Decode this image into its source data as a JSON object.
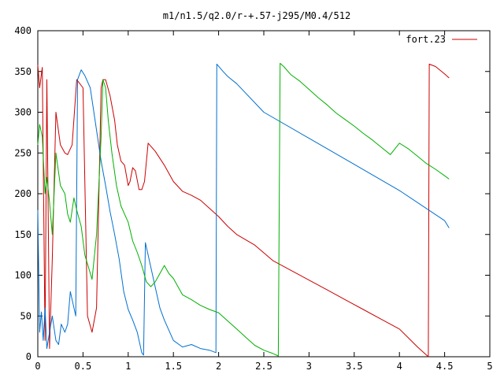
{
  "chart_data": {
    "type": "line",
    "title": "m1/n1.5/q2.0/r-+.57-j295/M0.4/512",
    "xlabel": "",
    "ylabel": "",
    "xlim": [
      0,
      5
    ],
    "ylim": [
      0,
      400
    ],
    "xticks": [
      {
        "value": 0,
        "label": "0"
      },
      {
        "value": 0.5,
        "label": "0.5"
      },
      {
        "value": 1,
        "label": "1"
      },
      {
        "value": 1.5,
        "label": "1.5"
      },
      {
        "value": 2,
        "label": "2"
      },
      {
        "value": 2.5,
        "label": "2.5"
      },
      {
        "value": 3,
        "label": "3"
      },
      {
        "value": 3.5,
        "label": "3.5"
      },
      {
        "value": 4,
        "label": "4"
      },
      {
        "value": 4.5,
        "label": "4.5"
      },
      {
        "value": 5,
        "label": "5"
      }
    ],
    "yticks": [
      {
        "value": 0,
        "label": "0"
      },
      {
        "value": 50,
        "label": "50"
      },
      {
        "value": 100,
        "label": "100"
      },
      {
        "value": 150,
        "label": "150"
      },
      {
        "value": 200,
        "label": "200"
      },
      {
        "value": 250,
        "label": "250"
      },
      {
        "value": 300,
        "label": "300"
      },
      {
        "value": 350,
        "label": "350"
      },
      {
        "value": 400,
        "label": "400"
      }
    ],
    "grid": false,
    "legend_position": "top-right",
    "legend_entries": [
      {
        "label": "fort.23",
        "color": "#cc0000"
      }
    ],
    "series": [
      {
        "name": "fort.23",
        "color": "#cc0000",
        "x": [
          0,
          0.02,
          0.05,
          0.08,
          0.1,
          0.13,
          0.16,
          0.2,
          0.25,
          0.3,
          0.33,
          0.38,
          0.43,
          0.5,
          0.55,
          0.6,
          0.65,
          0.7,
          0.72,
          0.75,
          0.8,
          0.85,
          0.88,
          0.92,
          0.96,
          1.0,
          1.02,
          1.05,
          1.08,
          1.12,
          1.15,
          1.18,
          1.22,
          1.3,
          1.4,
          1.5,
          1.6,
          1.7,
          1.8,
          1.9,
          2.0,
          2.1,
          2.2,
          2.4,
          2.6,
          2.8,
          3.0,
          3.2,
          3.4,
          3.6,
          3.8,
          4.0,
          4.2,
          4.32,
          4.33,
          4.4,
          4.5,
          4.55
        ],
        "y": [
          358,
          330,
          355,
          20,
          340,
          10,
          120,
          300,
          260,
          250,
          248,
          260,
          340,
          330,
          50,
          30,
          60,
          330,
          340,
          340,
          320,
          290,
          260,
          240,
          235,
          210,
          215,
          232,
          228,
          205,
          205,
          215,
          262,
          252,
          235,
          215,
          203,
          198,
          192,
          182,
          172,
          160,
          150,
          137,
          118,
          106,
          94,
          82,
          70,
          58,
          46,
          34,
          12,
          0,
          359,
          356,
          347,
          342
        ]
      },
      {
        "name": "",
        "color": "#0070d0",
        "x": [
          0,
          0.02,
          0.04,
          0.06,
          0.08,
          0.1,
          0.13,
          0.16,
          0.2,
          0.23,
          0.26,
          0.3,
          0.33,
          0.36,
          0.38,
          0.42,
          0.44,
          0.48,
          0.52,
          0.58,
          0.62,
          0.66,
          0.7,
          0.75,
          0.8,
          0.85,
          0.9,
          0.95,
          1.0,
          1.05,
          1.1,
          1.15,
          1.17,
          1.19,
          1.21,
          1.25,
          1.3,
          1.35,
          1.4,
          1.5,
          1.6,
          1.7,
          1.8,
          1.9,
          1.97,
          1.98,
          2.05,
          2.1,
          2.2,
          2.5,
          3.0,
          3.5,
          4.0,
          4.5,
          4.55
        ],
        "y": [
          180,
          30,
          55,
          20,
          60,
          10,
          30,
          50,
          20,
          15,
          40,
          30,
          40,
          80,
          70,
          50,
          340,
          352,
          345,
          330,
          300,
          270,
          240,
          210,
          178,
          150,
          120,
          80,
          58,
          45,
          30,
          5,
          2,
          140,
          130,
          110,
          85,
          60,
          45,
          20,
          12,
          15,
          10,
          8,
          5,
          359,
          350,
          344,
          335,
          300,
          268,
          236,
          204,
          167,
          158
        ]
      },
      {
        "name": "",
        "color": "#00b000",
        "x": [
          0,
          0.02,
          0.05,
          0.08,
          0.1,
          0.13,
          0.16,
          0.2,
          0.25,
          0.3,
          0.33,
          0.36,
          0.4,
          0.43,
          0.48,
          0.52,
          0.56,
          0.6,
          0.65,
          0.7,
          0.72,
          0.75,
          0.78,
          0.82,
          0.87,
          0.92,
          0.96,
          1.0,
          1.05,
          1.1,
          1.15,
          1.2,
          1.25,
          1.3,
          1.35,
          1.4,
          1.45,
          1.5,
          1.6,
          1.7,
          1.8,
          1.9,
          2.0,
          2.1,
          2.2,
          2.3,
          2.4,
          2.5,
          2.6,
          2.66,
          2.68,
          2.72,
          2.8,
          2.9,
          3.0,
          3.1,
          3.2,
          3.3,
          3.4,
          3.5,
          3.6,
          3.7,
          3.8,
          3.9,
          4.0,
          4.1,
          4.2,
          4.3,
          4.4,
          4.5,
          4.55
        ],
        "y": [
          260,
          285,
          270,
          200,
          220,
          190,
          150,
          250,
          210,
          200,
          175,
          165,
          195,
          180,
          160,
          125,
          110,
          95,
          150,
          270,
          340,
          330,
          290,
          250,
          210,
          185,
          175,
          165,
          142,
          128,
          112,
          92,
          86,
          92,
          102,
          112,
          102,
          96,
          76,
          70,
          63,
          58,
          54,
          44,
          34,
          24,
          14,
          8,
          4,
          1,
          360,
          356,
          346,
          338,
          328,
          318,
          309,
          299,
          291,
          283,
          274,
          266,
          257,
          248,
          262,
          255,
          246,
          237,
          230,
          222,
          218
        ]
      }
    ]
  }
}
